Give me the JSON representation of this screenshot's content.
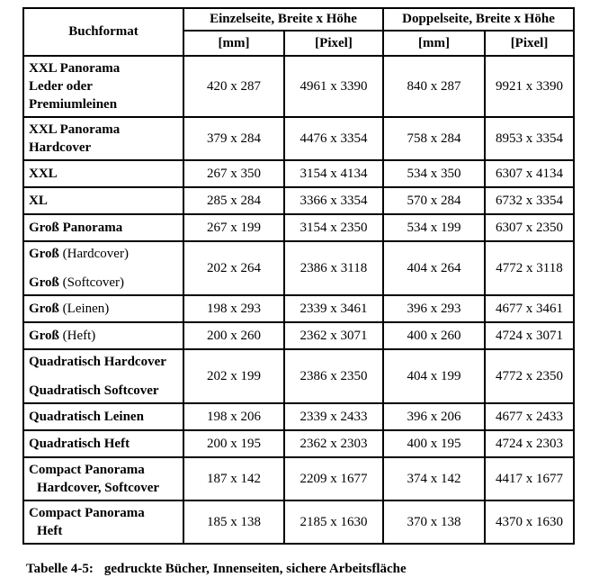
{
  "header": {
    "format_col": "Buchformat",
    "einzel_group": "Einzelseite, Breite x Höhe",
    "doppel_group": "Doppelseite, Breite x Höhe",
    "einzel_mm": "[mm]",
    "einzel_pixel": "[Pixel]",
    "doppel_mm": "[mm]",
    "doppel_pixel": "[Pixel]"
  },
  "rows": [
    {
      "lines": [
        {
          "segs": [
            {
              "t": "XXL Panorama",
              "b": true
            }
          ]
        },
        {
          "segs": [
            {
              "t": "Leder oder",
              "b": true
            }
          ]
        },
        {
          "segs": [
            {
              "t": "Premiumleinen",
              "b": true
            }
          ]
        }
      ],
      "einzel_mm": "420 x 287",
      "einzel_pixel": "4961 x 3390",
      "doppel_mm": "840 x 287",
      "doppel_pixel": "9921 x 3390"
    },
    {
      "lines": [
        {
          "segs": [
            {
              "t": "XXL Panorama",
              "b": true
            }
          ]
        },
        {
          "segs": [
            {
              "t": "Hardcover",
              "b": true
            }
          ]
        }
      ],
      "einzel_mm": "379 x 284",
      "einzel_pixel": "4476 x 3354",
      "doppel_mm": "758 x 284",
      "doppel_pixel": "8953 x 3354"
    },
    {
      "lines": [
        {
          "segs": [
            {
              "t": "XXL",
              "b": true
            }
          ]
        }
      ],
      "einzel_mm": "267 x 350",
      "einzel_pixel": "3154 x 4134",
      "doppel_mm": "534 x 350",
      "doppel_pixel": "6307 x 4134"
    },
    {
      "lines": [
        {
          "segs": [
            {
              "t": "XL",
              "b": true
            }
          ]
        }
      ],
      "einzel_mm": "285 x 284",
      "einzel_pixel": "3366 x 3354",
      "doppel_mm": "570 x 284",
      "doppel_pixel": "6732 x 3354"
    },
    {
      "lines": [
        {
          "segs": [
            {
              "t": "Groß Panorama",
              "b": true
            }
          ]
        }
      ],
      "einzel_mm": "267 x 199",
      "einzel_pixel": "3154 x 2350",
      "doppel_mm": "534 x 199",
      "doppel_pixel": "6307 x 2350"
    },
    {
      "spaced": true,
      "lines": [
        {
          "segs": [
            {
              "t": "Groß",
              "b": true
            },
            {
              "t": " (Hardcover)",
              "b": false
            }
          ]
        },
        {
          "segs": [
            {
              "t": "Groß",
              "b": true
            },
            {
              "t": " (Softcover)",
              "b": false
            }
          ]
        }
      ],
      "einzel_mm": "202 x 264",
      "einzel_pixel": "2386 x 3118",
      "doppel_mm": "404 x 264",
      "doppel_pixel": "4772 x 3118"
    },
    {
      "lines": [
        {
          "segs": [
            {
              "t": "Groß",
              "b": true
            },
            {
              "t": " (Leinen)",
              "b": false
            }
          ]
        }
      ],
      "einzel_mm": "198 x 293",
      "einzel_pixel": "2339 x 3461",
      "doppel_mm": "396 x 293",
      "doppel_pixel": "4677 x 3461"
    },
    {
      "lines": [
        {
          "segs": [
            {
              "t": "Groß",
              "b": true
            },
            {
              "t": " (Heft)",
              "b": false
            }
          ]
        }
      ],
      "einzel_mm": "200 x 260",
      "einzel_pixel": "2362 x 3071",
      "doppel_mm": "400 x 260",
      "doppel_pixel": "4724 x 3071"
    },
    {
      "spaced": true,
      "lines": [
        {
          "segs": [
            {
              "t": "Quadratisch Hardcover",
              "b": true
            }
          ]
        },
        {
          "segs": [
            {
              "t": "Quadratisch Softcover",
              "b": true
            }
          ]
        }
      ],
      "einzel_mm": "202 x 199",
      "einzel_pixel": "2386 x 2350",
      "doppel_mm": "404 x 199",
      "doppel_pixel": "4772 x 2350"
    },
    {
      "lines": [
        {
          "segs": [
            {
              "t": "Quadratisch Leinen",
              "b": true
            }
          ]
        }
      ],
      "einzel_mm": "198 x 206",
      "einzel_pixel": "2339 x 2433",
      "doppel_mm": "396 x 206",
      "doppel_pixel": "4677 x 2433"
    },
    {
      "lines": [
        {
          "segs": [
            {
              "t": "Quadratisch Heft",
              "b": true
            }
          ]
        }
      ],
      "einzel_mm": "200 x 195",
      "einzel_pixel": "2362 x 2303",
      "doppel_mm": "400 x 195",
      "doppel_pixel": "4724 x 2303"
    },
    {
      "lines": [
        {
          "segs": [
            {
              "t": "Compact Panorama",
              "b": true
            }
          ]
        },
        {
          "indent": true,
          "segs": [
            {
              "t": "Hardcover, Softcover",
              "b": true
            }
          ]
        }
      ],
      "einzel_mm": "187 x 142",
      "einzel_pixel": "2209 x 1677",
      "doppel_mm": "374 x 142",
      "doppel_pixel": "4417 x 1677"
    },
    {
      "lines": [
        {
          "segs": [
            {
              "t": "Compact Panorama",
              "b": true
            }
          ]
        },
        {
          "indent": true,
          "segs": [
            {
              "t": "Heft",
              "b": true
            }
          ]
        }
      ],
      "einzel_mm": "185 x 138",
      "einzel_pixel": "2185 x 1630",
      "doppel_mm": "370 x 138",
      "doppel_pixel": "4370 x 1630"
    }
  ],
  "caption": {
    "label": "Tabelle 4-5:",
    "text": "gedruckte Bücher, Innenseiten, sichere Arbeitsfläche"
  }
}
